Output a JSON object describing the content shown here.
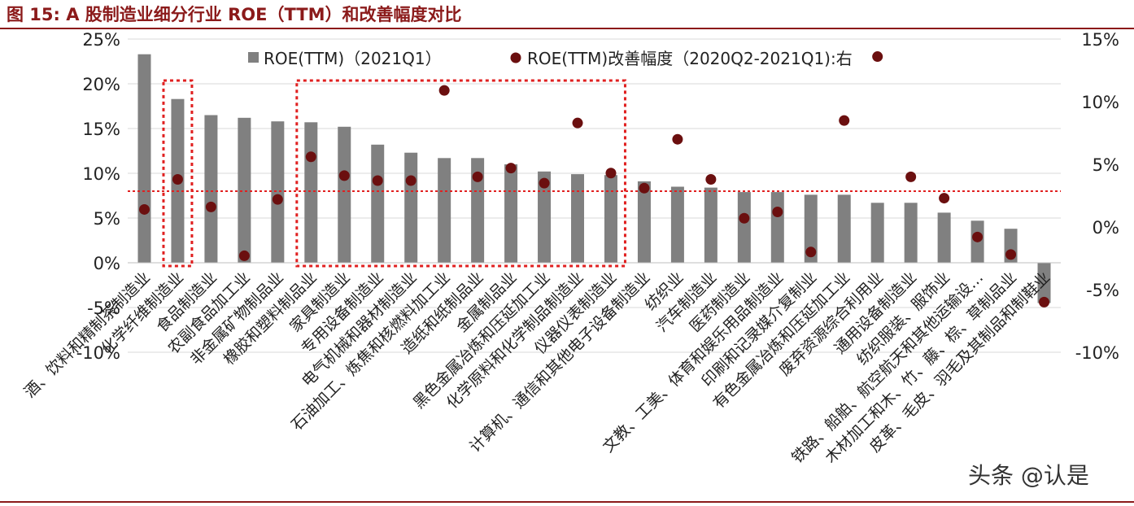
{
  "title": "图 15:  A 股制造业细分行业 ROE（TTM）和改善幅度对比",
  "watermark": "头条 @认是",
  "chart_data": {
    "type": "bar",
    "categories": [
      "酒、饮料和精制茶制造业",
      "化学纤维制造业",
      "食品制造业",
      "农副食品加工业",
      "非金属矿物制品业",
      "橡胶和塑料制品业",
      "家具制造业",
      "专用设备制造业",
      "电气机械和器材制造业",
      "石油加工、炼焦和核燃料加工业",
      "造纸和纸制品业",
      "金属制品业",
      "黑色金属冶炼和压延加工业",
      "化学原料和化学制品制造业",
      "仪器仪表制造业",
      "计算机、通信和其他电子设备制造业",
      "纺织业",
      "汽车制造业",
      "医药制造业",
      "文教、工美、体育和娱乐用品制造业",
      "印刷和记录媒介复制业",
      "有色金属冶炼和压延加工业",
      "废弃资源综合利用业",
      "通用设备制造业",
      "纺织服装、服饰业",
      "铁路、船舶、航空航天和其他运输设…",
      "木材加工和木、竹、藤、棕、草制品业",
      "皮革、毛皮、羽毛及其制品和制鞋业"
    ],
    "series": [
      {
        "name": "ROE(TTM)（2021Q1）",
        "axis": "left",
        "kind": "bar",
        "values": [
          23.3,
          18.3,
          16.5,
          16.2,
          15.8,
          15.7,
          15.2,
          13.2,
          12.3,
          11.7,
          11.7,
          11.0,
          10.2,
          9.9,
          9.8,
          9.1,
          8.5,
          8.4,
          7.9,
          7.9,
          7.6,
          7.6,
          6.7,
          6.7,
          5.6,
          4.7,
          3.8,
          -4.5
        ]
      },
      {
        "name": "ROE(TTM)改善幅度（2020Q2-2021Q1):右",
        "axis": "right",
        "kind": "scatter",
        "values": [
          1.4,
          3.8,
          1.6,
          -2.3,
          2.2,
          5.6,
          4.1,
          3.7,
          3.7,
          10.9,
          4.0,
          4.7,
          3.5,
          8.3,
          4.3,
          3.1,
          7.0,
          3.8,
          0.7,
          1.2,
          -2.0,
          8.5,
          13.6,
          4.0,
          2.3,
          -0.8,
          -2.2,
          -6.0
        ]
      }
    ],
    "y_left": {
      "ylim": [
        -10,
        25
      ],
      "ticks": [
        -10,
        -5,
        0,
        5,
        10,
        15,
        20,
        25
      ],
      "tick_labels": [
        "-10%",
        "-5%",
        "0%",
        "5%",
        "10%",
        "15%",
        "20%",
        "25%"
      ]
    },
    "y_right": {
      "ylim": [
        -10,
        15
      ],
      "ticks": [
        -10,
        -5,
        0,
        5,
        10,
        15
      ],
      "tick_labels": [
        "-10%",
        "-5%",
        "0%",
        "5%",
        "10%",
        "15%"
      ]
    },
    "reference_line": {
      "axis": "left",
      "value": 8.0
    },
    "highlight_groups": [
      {
        "from": 1,
        "to": 1
      },
      {
        "from": 5,
        "to": 14
      }
    ],
    "legend": "top-center",
    "grid": true,
    "colors": {
      "bar": "#808080",
      "dot": "#6b0f0f",
      "highlight": "#e02020",
      "grid": "#d9d9d9",
      "title": "#8b1a1a"
    }
  }
}
